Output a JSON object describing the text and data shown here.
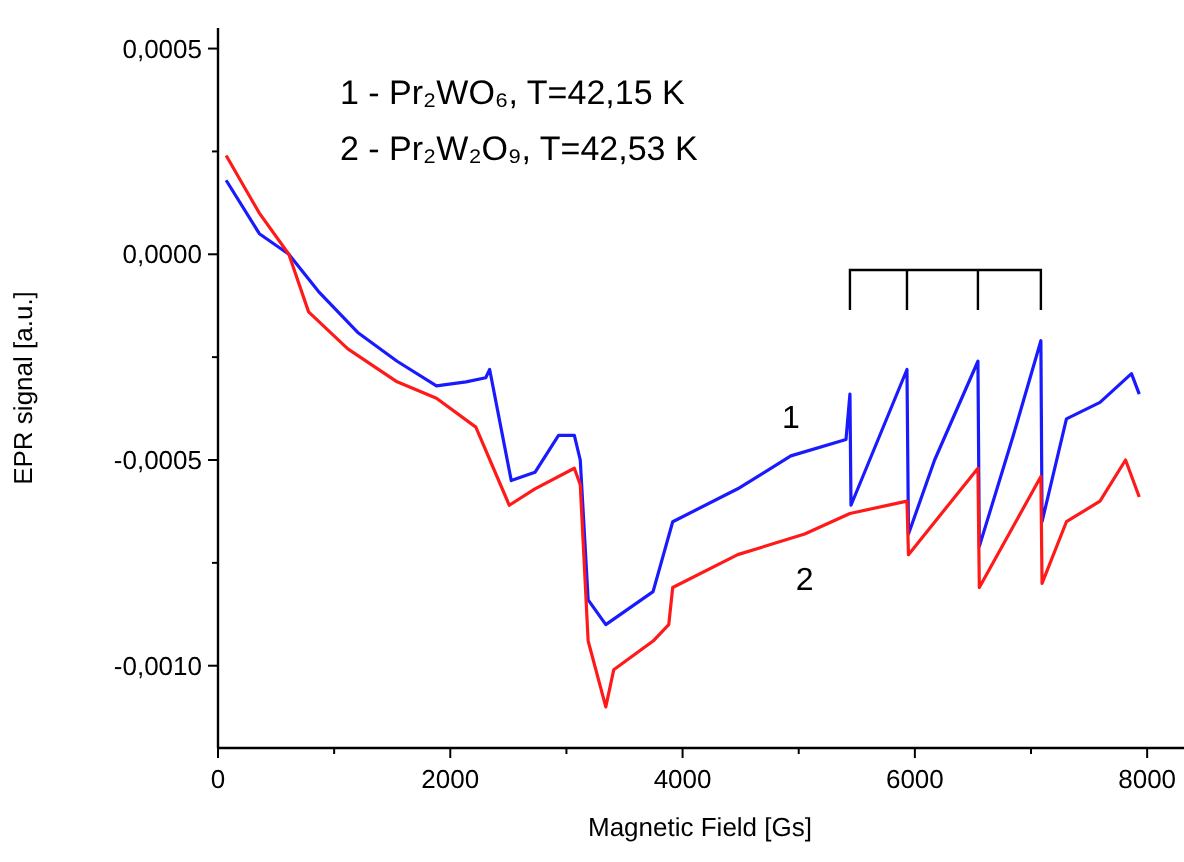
{
  "chart_data": {
    "type": "line",
    "xlabel": "Magnetic Field [Gs]",
    "ylabel": "EPR signal [a.u.]",
    "xlim": [
      0,
      8300
    ],
    "ylim": [
      -0.0012,
      0.00055
    ],
    "xticks": [
      0,
      {
        "value": 1000,
        "label": null
      },
      2000,
      {
        "value": 3000,
        "label": null
      },
      4000,
      {
        "value": 5000,
        "label": null
      },
      6000,
      {
        "value": 7000,
        "label": null
      },
      8000
    ],
    "yticks": [
      {
        "value": 0.0005,
        "label": "0,0005"
      },
      {
        "value": 0.00025,
        "label": null
      },
      {
        "value": 0,
        "label": "0,0000"
      },
      {
        "value": -0.00025,
        "label": null
      },
      {
        "value": -0.0005,
        "label": "-0,0005"
      },
      {
        "value": -0.00075,
        "label": null
      },
      {
        "value": -0.001,
        "label": "-0,0010"
      }
    ],
    "grid": false,
    "marker": "none",
    "line_style": "solid",
    "series": [
      {
        "name": "1",
        "color": "#1a1aff",
        "x": [
          70,
          356,
          610,
          864,
          1203,
          1542,
          1881,
          2136,
          2305,
          2339,
          2525,
          2729,
          2932,
          3068,
          3119,
          3187,
          3339,
          3746,
          3915,
          4475,
          4932,
          5407,
          5441,
          5450,
          5932,
          5945,
          6170,
          6543,
          6555,
          6848,
          7085,
          7095,
          7305,
          7594,
          7865,
          7932
        ],
        "values": [
          0.00018,
          5e-05,
          0,
          -9e-05,
          -0.00019,
          -0.00026,
          -0.00032,
          -0.00031,
          -0.0003,
          -0.00028,
          -0.00055,
          -0.00053,
          -0.00044,
          -0.00044,
          -0.0005,
          -0.00084,
          -0.0009,
          -0.00082,
          -0.00065,
          -0.00057,
          -0.00049,
          -0.00045,
          -0.00034,
          -0.00061,
          -0.00028,
          -0.00068,
          -0.0005,
          -0.00026,
          -0.00071,
          -0.00044,
          -0.00021,
          -0.00065,
          -0.0004,
          -0.00036,
          -0.00029,
          -0.00034
        ]
      },
      {
        "name": "2",
        "color": "#ff1a1a",
        "x": [
          70,
          356,
          610,
          780,
          1118,
          1542,
          1881,
          2220,
          2508,
          2729,
          3068,
          3119,
          3187,
          3339,
          3407,
          3746,
          3881,
          3915,
          4475,
          5051,
          5441,
          5932,
          5945,
          6543,
          6555,
          7085,
          7095,
          7305,
          7594,
          7814,
          7932
        ],
        "values": [
          0.00024,
          0.0001,
          0,
          -0.00014,
          -0.00023,
          -0.00031,
          -0.00035,
          -0.00042,
          -0.00061,
          -0.00057,
          -0.00052,
          -0.00056,
          -0.00094,
          -0.0011,
          -0.00101,
          -0.00094,
          -0.0009,
          -0.00081,
          -0.00073,
          -0.00068,
          -0.00063,
          -0.0006,
          -0.00073,
          -0.00052,
          -0.00081,
          -0.00054,
          -0.0008,
          -0.00065,
          -0.0006,
          -0.0005,
          -0.00059
        ]
      }
    ],
    "annotations": [
      "1 - Pr₂WO₆, T=42,15 K",
      "2 - Pr₂W₂O₉, T=42,53 K"
    ]
  }
}
